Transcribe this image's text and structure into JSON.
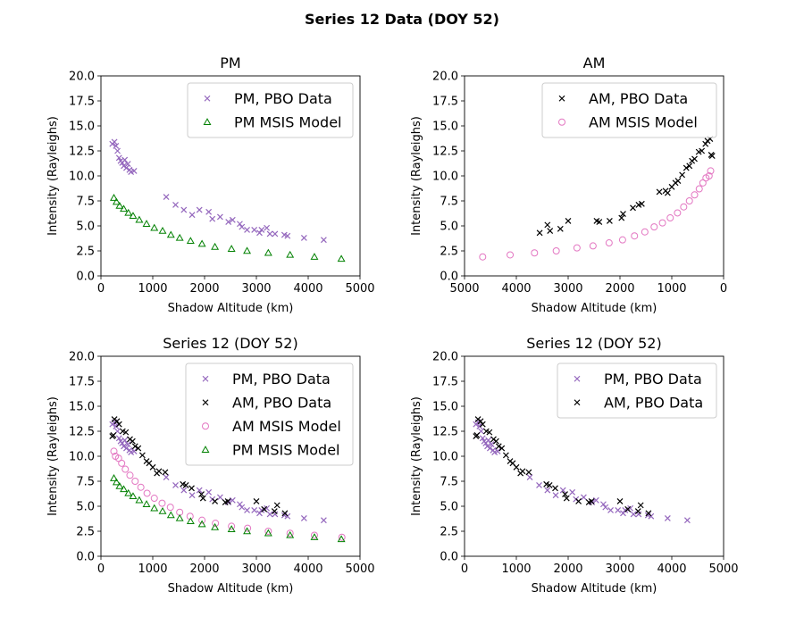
{
  "figure_title": "Series 12 Data (DOY 52)",
  "colors": {
    "pm_pbo": "#9467bd",
    "am_pbo": "#000000",
    "am_msis": "#e377c2",
    "pm_msis": "#008000"
  },
  "chart_data": [
    {
      "type": "scatter",
      "title": "PM",
      "xlabel": "Shadow Altitude (km)",
      "ylabel": "Intensity (Rayleighs)",
      "xlim": [
        0,
        5000
      ],
      "ylim": [
        0,
        20
      ],
      "xticks": [
        "0",
        "1000",
        "2000",
        "3000",
        "4000",
        "5000"
      ],
      "yticks": [
        "0.0",
        "2.5",
        "5.0",
        "7.5",
        "10.0",
        "12.5",
        "15.0",
        "17.5",
        "20.0"
      ],
      "legend_position": "upper right",
      "series": [
        {
          "name": "PM, PBO Data",
          "marker": "x",
          "color": "#9467bd",
          "x": [
            220,
            260,
            290,
            320,
            350,
            380,
            410,
            440,
            460,
            490,
            520,
            550,
            580,
            640,
            1260,
            1440,
            1600,
            1760,
            1900,
            2080,
            2150,
            2300,
            2460,
            2540,
            2680,
            2720,
            2820,
            2960,
            3060,
            3100,
            3200,
            3260,
            3360,
            3540,
            3600,
            3920,
            4300
          ],
          "y": [
            13.2,
            13.4,
            13.0,
            12.5,
            11.8,
            11.5,
            11.3,
            11.0,
            11.6,
            10.8,
            11.2,
            10.6,
            10.4,
            10.5,
            7.9,
            7.1,
            6.6,
            6.1,
            6.6,
            6.4,
            5.7,
            5.9,
            5.4,
            5.6,
            5.2,
            4.9,
            4.6,
            4.6,
            4.3,
            4.6,
            4.8,
            4.2,
            4.2,
            4.1,
            4.0,
            3.8,
            3.6
          ]
        },
        {
          "name": "PM MSIS Model",
          "marker": "^",
          "color": "#008000",
          "x": [
            250,
            300,
            360,
            440,
            530,
            620,
            740,
            880,
            1030,
            1190,
            1350,
            1520,
            1730,
            1950,
            2200,
            2520,
            2820,
            3230,
            3650,
            4120,
            4640
          ],
          "y": [
            7.8,
            7.4,
            7.0,
            6.7,
            6.3,
            6.0,
            5.6,
            5.2,
            4.8,
            4.5,
            4.1,
            3.8,
            3.5,
            3.2,
            2.9,
            2.7,
            2.5,
            2.3,
            2.1,
            1.9,
            1.7
          ]
        }
      ]
    },
    {
      "type": "scatter",
      "title": "AM",
      "xlabel": "Shadow Altitude (km)",
      "ylabel": "Intensity (Rayleighs)",
      "xlim": [
        5000,
        0
      ],
      "ylim": [
        0,
        20
      ],
      "xticks": [
        "5000",
        "4000",
        "3000",
        "2000",
        "1000",
        "0"
      ],
      "yticks": [
        "0.0",
        "2.5",
        "5.0",
        "7.5",
        "10.0",
        "12.5",
        "15.0",
        "17.5",
        "20.0"
      ],
      "legend_position": "upper right",
      "series": [
        {
          "name": "AM, PBO Data",
          "marker": "x",
          "color": "#000000",
          "x": [
            3550,
            3400,
            3350,
            3150,
            3000,
            2450,
            2400,
            2200,
            1970,
            1940,
            1750,
            1640,
            1580,
            1240,
            1120,
            1080,
            1000,
            930,
            880,
            800,
            720,
            660,
            610,
            560,
            480,
            420,
            350,
            310,
            260,
            240,
            220
          ],
          "y": [
            4.3,
            5.1,
            4.5,
            4.7,
            5.5,
            5.5,
            5.4,
            5.5,
            5.8,
            6.2,
            6.8,
            7.1,
            7.2,
            8.4,
            8.5,
            8.3,
            8.9,
            9.3,
            9.5,
            10.1,
            10.8,
            11.0,
            11.5,
            11.7,
            12.4,
            12.5,
            13.2,
            13.5,
            13.7,
            12.1,
            12.0
          ]
        },
        {
          "name": "AM MSIS Model",
          "marker": "o",
          "color": "#e377c2",
          "x": [
            4650,
            4120,
            3650,
            3230,
            2830,
            2520,
            2210,
            1950,
            1720,
            1520,
            1340,
            1180,
            1030,
            890,
            770,
            660,
            560,
            470,
            400,
            340,
            280,
            250
          ],
          "y": [
            1.9,
            2.1,
            2.3,
            2.5,
            2.8,
            3.0,
            3.3,
            3.6,
            4.0,
            4.4,
            4.9,
            5.3,
            5.8,
            6.3,
            6.9,
            7.5,
            8.1,
            8.7,
            9.3,
            9.8,
            10.0,
            10.5
          ]
        }
      ]
    },
    {
      "type": "scatter",
      "title": "Series 12 (DOY 52)",
      "xlabel": "Shadow Altitude (km)",
      "ylabel": "Intensity (Rayleighs)",
      "xlim": [
        0,
        5000
      ],
      "ylim": [
        0,
        20
      ],
      "xticks": [
        "0",
        "1000",
        "2000",
        "3000",
        "4000",
        "5000"
      ],
      "yticks": [
        "0.0",
        "2.5",
        "5.0",
        "7.5",
        "10.0",
        "12.5",
        "15.0",
        "17.5",
        "20.0"
      ],
      "legend_position": "upper right",
      "series": [
        {
          "name": "PM, PBO Data",
          "marker": "x",
          "color": "#9467bd",
          "x": [
            220,
            260,
            290,
            320,
            350,
            380,
            410,
            440,
            460,
            490,
            520,
            550,
            580,
            640,
            1260,
            1440,
            1600,
            1760,
            1900,
            2080,
            2150,
            2300,
            2460,
            2540,
            2680,
            2720,
            2820,
            2960,
            3060,
            3100,
            3200,
            3260,
            3360,
            3540,
            3600,
            3920,
            4300
          ],
          "y": [
            13.2,
            13.4,
            13.0,
            12.5,
            11.8,
            11.5,
            11.3,
            11.0,
            11.6,
            10.8,
            11.2,
            10.6,
            10.4,
            10.5,
            7.9,
            7.1,
            6.6,
            6.1,
            6.6,
            6.4,
            5.7,
            5.9,
            5.4,
            5.6,
            5.2,
            4.9,
            4.6,
            4.6,
            4.3,
            4.6,
            4.8,
            4.2,
            4.2,
            4.1,
            4.0,
            3.8,
            3.6
          ]
        },
        {
          "name": "AM, PBO Data",
          "marker": "x",
          "color": "#000000",
          "x": [
            3550,
            3400,
            3350,
            3150,
            3000,
            2450,
            2400,
            2200,
            1970,
            1940,
            1750,
            1640,
            1580,
            1240,
            1120,
            1080,
            1000,
            930,
            880,
            800,
            720,
            660,
            610,
            560,
            480,
            420,
            350,
            310,
            260,
            240,
            220
          ],
          "y": [
            4.3,
            5.1,
            4.5,
            4.7,
            5.5,
            5.5,
            5.4,
            5.5,
            5.8,
            6.2,
            6.8,
            7.1,
            7.2,
            8.4,
            8.5,
            8.3,
            8.9,
            9.3,
            9.5,
            10.1,
            10.8,
            11.0,
            11.5,
            11.7,
            12.4,
            12.5,
            13.2,
            13.5,
            13.7,
            12.1,
            12.0
          ]
        },
        {
          "name": "AM MSIS Model",
          "marker": "o",
          "color": "#e377c2",
          "x": [
            4650,
            4120,
            3650,
            3230,
            2830,
            2520,
            2210,
            1950,
            1720,
            1520,
            1340,
            1180,
            1030,
            890,
            770,
            660,
            560,
            470,
            400,
            340,
            280,
            250
          ],
          "y": [
            1.9,
            2.1,
            2.3,
            2.5,
            2.8,
            3.0,
            3.3,
            3.6,
            4.0,
            4.4,
            4.9,
            5.3,
            5.8,
            6.3,
            6.9,
            7.5,
            8.1,
            8.7,
            9.3,
            9.8,
            10.0,
            10.5
          ]
        },
        {
          "name": "PM MSIS Model",
          "marker": "^",
          "color": "#008000",
          "x": [
            250,
            300,
            360,
            440,
            530,
            620,
            740,
            880,
            1030,
            1190,
            1350,
            1520,
            1730,
            1950,
            2200,
            2520,
            2820,
            3230,
            3650,
            4120,
            4640
          ],
          "y": [
            7.8,
            7.4,
            7.0,
            6.7,
            6.3,
            6.0,
            5.6,
            5.2,
            4.8,
            4.5,
            4.1,
            3.8,
            3.5,
            3.2,
            2.9,
            2.7,
            2.5,
            2.3,
            2.1,
            1.9,
            1.7
          ]
        }
      ]
    },
    {
      "type": "scatter",
      "title": "Series 12 (DOY 52)",
      "xlabel": "Shadow Altitude (km)",
      "ylabel": "Intensity (Rayleighs)",
      "xlim": [
        0,
        5000
      ],
      "ylim": [
        0,
        20
      ],
      "xticks": [
        "0",
        "1000",
        "2000",
        "3000",
        "4000",
        "5000"
      ],
      "yticks": [
        "0.0",
        "2.5",
        "5.0",
        "7.5",
        "10.0",
        "12.5",
        "15.0",
        "17.5",
        "20.0"
      ],
      "legend_position": "upper right",
      "series": [
        {
          "name": "PM, PBO Data",
          "marker": "x",
          "color": "#9467bd",
          "x": [
            220,
            260,
            290,
            320,
            350,
            380,
            410,
            440,
            460,
            490,
            520,
            550,
            580,
            640,
            1260,
            1440,
            1600,
            1760,
            1900,
            2080,
            2150,
            2300,
            2460,
            2540,
            2680,
            2720,
            2820,
            2960,
            3060,
            3100,
            3200,
            3260,
            3360,
            3540,
            3600,
            3920,
            4300
          ],
          "y": [
            13.2,
            13.4,
            13.0,
            12.5,
            11.8,
            11.5,
            11.3,
            11.0,
            11.6,
            10.8,
            11.2,
            10.6,
            10.4,
            10.5,
            7.9,
            7.1,
            6.6,
            6.1,
            6.6,
            6.4,
            5.7,
            5.9,
            5.4,
            5.6,
            5.2,
            4.9,
            4.6,
            4.6,
            4.3,
            4.6,
            4.8,
            4.2,
            4.2,
            4.1,
            4.0,
            3.8,
            3.6
          ]
        },
        {
          "name": "AM, PBO Data",
          "marker": "x",
          "color": "#000000",
          "x": [
            3550,
            3400,
            3350,
            3150,
            3000,
            2450,
            2400,
            2200,
            1970,
            1940,
            1750,
            1640,
            1580,
            1240,
            1120,
            1080,
            1000,
            930,
            880,
            800,
            720,
            660,
            610,
            560,
            480,
            420,
            350,
            310,
            260,
            240,
            220
          ],
          "y": [
            4.3,
            5.1,
            4.5,
            4.7,
            5.5,
            5.5,
            5.4,
            5.5,
            5.8,
            6.2,
            6.8,
            7.1,
            7.2,
            8.4,
            8.5,
            8.3,
            8.9,
            9.3,
            9.5,
            10.1,
            10.8,
            11.0,
            11.5,
            11.7,
            12.4,
            12.5,
            13.2,
            13.5,
            13.7,
            12.1,
            12.0
          ]
        }
      ]
    }
  ]
}
